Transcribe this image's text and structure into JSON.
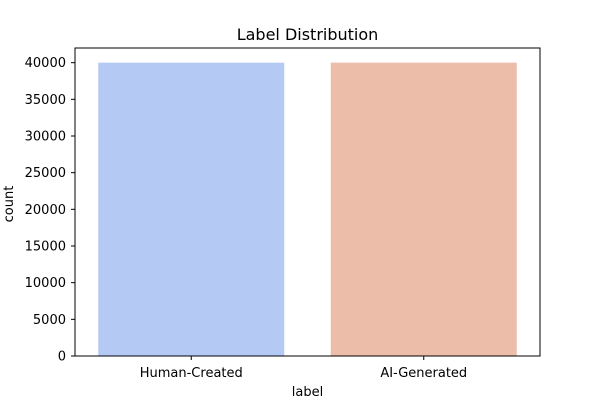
{
  "chart_data": {
    "type": "bar",
    "title": "Label Distribution",
    "xlabel": "label",
    "ylabel": "count",
    "categories": [
      "Human-Created",
      "AI-Generated"
    ],
    "values": [
      40000,
      40000
    ],
    "colors": [
      "#b5c9f5",
      "#ecbda8"
    ],
    "ylim": [
      0,
      42000
    ],
    "yticks": [
      0,
      5000,
      10000,
      15000,
      20000,
      25000,
      30000,
      35000,
      40000
    ],
    "grid": false,
    "legend": "none"
  }
}
